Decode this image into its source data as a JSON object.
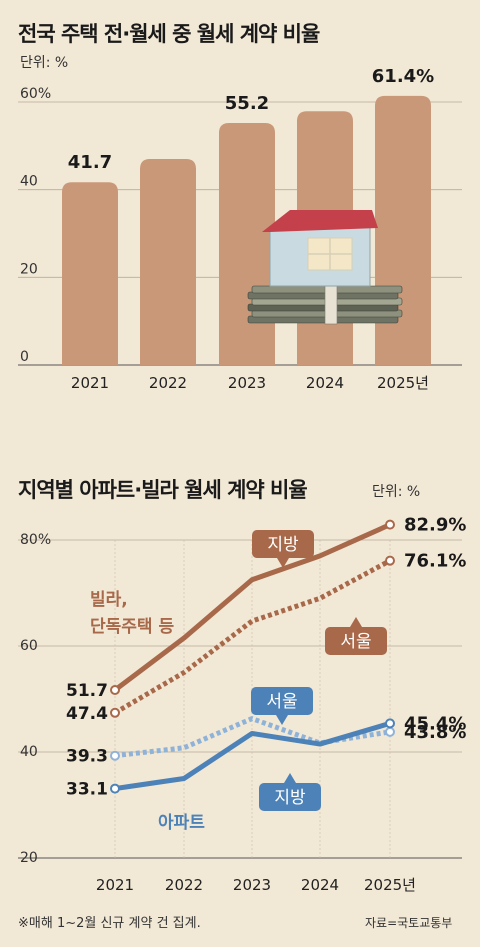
{
  "chart1": {
    "title": "전국 주택 전·월세 중 월세 계약 비율",
    "unit": "단위: %",
    "chart_data": {
      "type": "bar",
      "title": "전국 주택 전·월세 중 월세 계약 비율",
      "categories": [
        "2021",
        "2022",
        "2023",
        "2024",
        "2025년"
      ],
      "values": [
        41.7,
        47.0,
        55.2,
        57.9,
        61.4
      ],
      "value_labels": [
        "41.7",
        "",
        "55.2",
        "",
        "61.4%"
      ],
      "yticks": [
        "0",
        "20",
        "40",
        "60%"
      ],
      "ylim": [
        0,
        60
      ],
      "bar_color": "#c99878",
      "grid": true
    }
  },
  "chart2": {
    "title": "지역별 아파트·빌라 월세 계약 비율",
    "unit": "단위: %",
    "chart_data": {
      "type": "line",
      "title": "지역별 아파트·빌라 월세 계약 비율",
      "x": [
        "2021",
        "2022",
        "2023",
        "2024",
        "2025년"
      ],
      "yticks": [
        "20",
        "40",
        "60",
        "80%"
      ],
      "ylim": [
        20,
        80
      ],
      "series": [
        {
          "group": "빌라, 단독주택 등",
          "region": "지방",
          "values": [
            51.7,
            61.5,
            72.5,
            77.0,
            82.9
          ],
          "color": "#a8694a",
          "style": "solid",
          "start_label": "51.7",
          "end_label": "82.9%"
        },
        {
          "group": "빌라, 단독주택 등",
          "region": "서울",
          "values": [
            47.4,
            55.0,
            64.7,
            69.0,
            76.1
          ],
          "color": "#a8694a",
          "style": "dotted",
          "start_label": "47.4",
          "end_label": "76.1%"
        },
        {
          "group": "아파트",
          "region": "서울",
          "values": [
            39.3,
            40.8,
            46.3,
            41.7,
            43.8
          ],
          "color": "#8fb3d8",
          "style": "dotted",
          "start_label": "39.3",
          "end_label": "43.8%"
        },
        {
          "group": "아파트",
          "region": "지방",
          "values": [
            33.1,
            35.0,
            43.5,
            41.5,
            45.4
          ],
          "color": "#4d82b8",
          "style": "solid",
          "start_label": "33.1",
          "end_label": "45.4%"
        }
      ],
      "annotations": {
        "villa_group": [
          "빌라,",
          "단독주택 등"
        ],
        "apt_group": "아파트",
        "tag_villa_local": "지방",
        "tag_villa_seoul": "서울",
        "tag_apt_seoul": "서울",
        "tag_apt_local": "지방"
      }
    }
  },
  "footer": {
    "note": "※매해 1~2월 신규 계약 건 집계.",
    "source": "자료=국토교통부"
  }
}
